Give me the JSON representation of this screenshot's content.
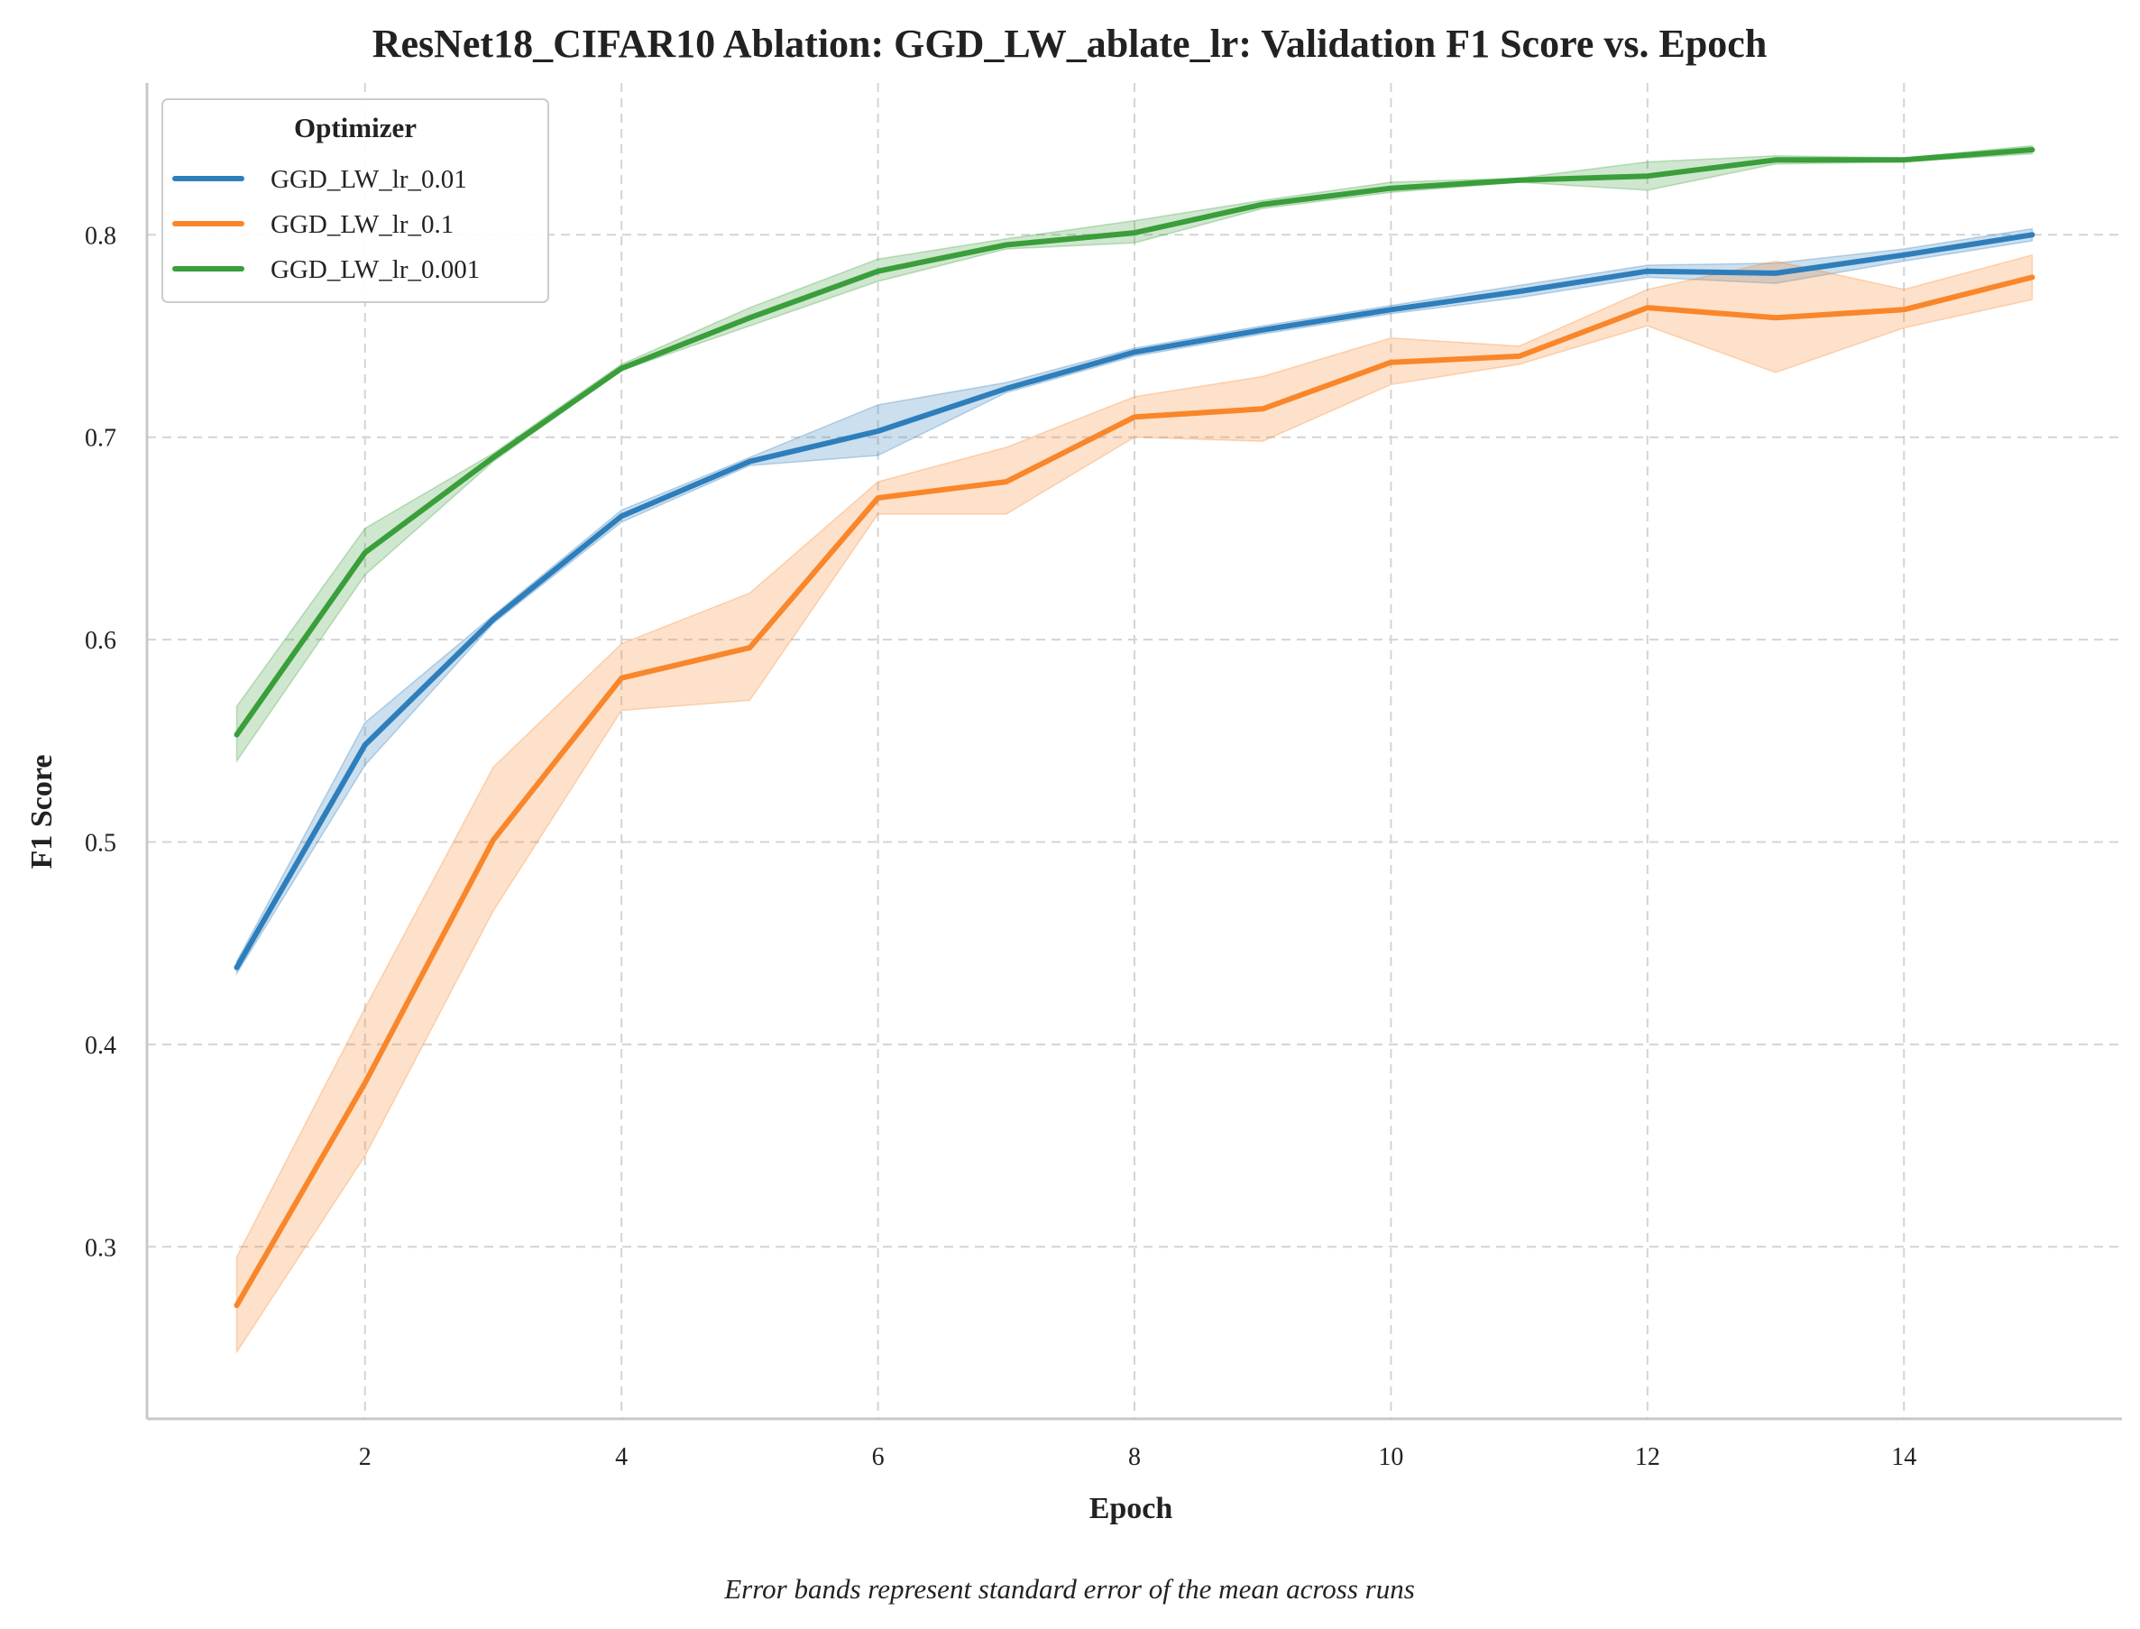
{
  "chart_data": {
    "type": "line",
    "title": "ResNet18_CIFAR10 Ablation: GGD_LW_ablate_lr: Validation F1 Score vs. Epoch",
    "xlabel": "Epoch",
    "ylabel": "F1 Score",
    "caption": "Error bands represent standard error of the mean across runs",
    "xlim": [
      0.3,
      15.7
    ],
    "ylim": [
      0.215,
      0.875
    ],
    "xticks": [
      2,
      4,
      6,
      8,
      10,
      12,
      14
    ],
    "yticks": [
      0.3,
      0.4,
      0.5,
      0.6,
      0.7,
      0.8
    ],
    "ytick_labels": [
      "0.3",
      "0.4",
      "0.5",
      "0.6",
      "0.7",
      "0.8"
    ],
    "grid": true,
    "legend": {
      "title": "Optimizer",
      "placement": "top-left"
    },
    "x": [
      1,
      2,
      3,
      4,
      5,
      6,
      7,
      8,
      9,
      10,
      11,
      12,
      13,
      14,
      15
    ],
    "series": [
      {
        "name": "GGD_LW_lr_0.01",
        "color": "#2e7ebc",
        "values": [
          0.438,
          0.548,
          0.61,
          0.661,
          0.688,
          0.703,
          0.724,
          0.742,
          0.753,
          0.763,
          0.772,
          0.782,
          0.781,
          0.79,
          0.8
        ],
        "lower": [
          0.435,
          0.538,
          0.608,
          0.658,
          0.686,
          0.691,
          0.722,
          0.74,
          0.751,
          0.761,
          0.769,
          0.779,
          0.776,
          0.787,
          0.797
        ],
        "upper": [
          0.441,
          0.559,
          0.612,
          0.664,
          0.69,
          0.716,
          0.727,
          0.744,
          0.755,
          0.765,
          0.775,
          0.785,
          0.786,
          0.793,
          0.803
        ]
      },
      {
        "name": "GGD_LW_lr_0.1",
        "color": "#f9862a",
        "values": [
          0.271,
          0.381,
          0.501,
          0.581,
          0.596,
          0.67,
          0.678,
          0.71,
          0.714,
          0.737,
          0.74,
          0.764,
          0.759,
          0.763,
          0.779
        ],
        "lower": [
          0.248,
          0.345,
          0.466,
          0.565,
          0.57,
          0.662,
          0.662,
          0.7,
          0.698,
          0.726,
          0.736,
          0.755,
          0.732,
          0.754,
          0.768
        ],
        "upper": [
          0.295,
          0.418,
          0.537,
          0.598,
          0.623,
          0.678,
          0.695,
          0.72,
          0.73,
          0.749,
          0.745,
          0.773,
          0.787,
          0.773,
          0.79
        ]
      },
      {
        "name": "GGD_LW_lr_0.001",
        "color": "#3a9e3a",
        "values": [
          0.553,
          0.643,
          0.69,
          0.734,
          0.759,
          0.782,
          0.795,
          0.801,
          0.815,
          0.823,
          0.827,
          0.829,
          0.837,
          0.837,
          0.842
        ],
        "lower": [
          0.54,
          0.632,
          0.688,
          0.733,
          0.755,
          0.777,
          0.793,
          0.796,
          0.813,
          0.821,
          0.826,
          0.822,
          0.835,
          0.836,
          0.84
        ],
        "upper": [
          0.567,
          0.655,
          0.692,
          0.736,
          0.764,
          0.788,
          0.798,
          0.807,
          0.817,
          0.826,
          0.828,
          0.836,
          0.839,
          0.838,
          0.844
        ]
      }
    ]
  }
}
